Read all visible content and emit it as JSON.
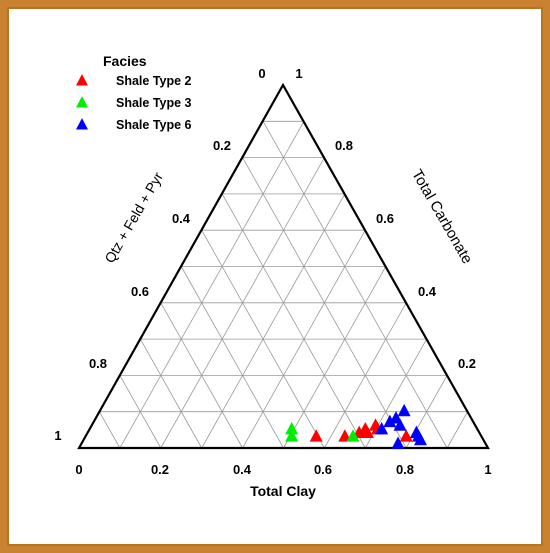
{
  "chart_data": {
    "type": "ternary-scatter",
    "title": "",
    "axes": {
      "bottom": {
        "label": "Total Clay",
        "ticks": [
          "0",
          "0.2",
          "0.4",
          "0.6",
          "0.8",
          "1"
        ]
      },
      "left": {
        "label": "Qtz + Feld + Pyr",
        "ticks": [
          "0",
          "0.2",
          "0.4",
          "0.6",
          "0.8",
          "1"
        ]
      },
      "right": {
        "label": "Total Carbonate",
        "ticks": [
          "1",
          "0.8",
          "0.6",
          "0.4",
          "0.2"
        ]
      }
    },
    "grid": true,
    "legend": {
      "title": "Facies",
      "placement": "top-left"
    },
    "series": [
      {
        "name": "Shale Type 2",
        "color": "#ff0000",
        "points": [
          {
            "clay": 0.57,
            "carbonate": 0.02
          },
          {
            "clay": 0.64,
            "carbonate": 0.02
          },
          {
            "clay": 0.67,
            "carbonate": 0.03
          },
          {
            "clay": 0.68,
            "carbonate": 0.04
          },
          {
            "clay": 0.69,
            "carbonate": 0.03
          },
          {
            "clay": 0.7,
            "carbonate": 0.05
          },
          {
            "clay": 0.71,
            "carbonate": 0.04
          },
          {
            "clay": 0.79,
            "carbonate": 0.02
          }
        ]
      },
      {
        "name": "Shale Type 3",
        "color": "#00ee00",
        "points": [
          {
            "clay": 0.5,
            "carbonate": 0.04
          },
          {
            "clay": 0.51,
            "carbonate": 0.02
          },
          {
            "clay": 0.66,
            "carbonate": 0.02
          }
        ]
      },
      {
        "name": "Shale Type 6",
        "color": "#0000ff",
        "points": [
          {
            "clay": 0.72,
            "carbonate": 0.04
          },
          {
            "clay": 0.73,
            "carbonate": 0.06
          },
          {
            "clay": 0.74,
            "carbonate": 0.07
          },
          {
            "clay": 0.75,
            "carbonate": 0.09
          },
          {
            "clay": 0.76,
            "carbonate": 0.05
          },
          {
            "clay": 0.81,
            "carbonate": 0.03
          },
          {
            "clay": 0.82,
            "carbonate": 0.02
          },
          {
            "clay": 0.83,
            "carbonate": 0.01
          },
          {
            "clay": 0.78,
            "carbonate": 0.0
          }
        ]
      }
    ]
  }
}
